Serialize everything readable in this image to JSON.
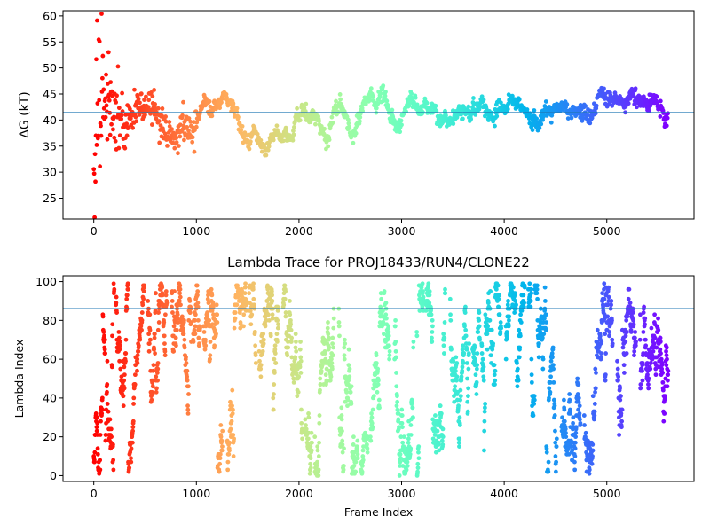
{
  "chart_data": [
    {
      "type": "scatter",
      "title": "",
      "xlabel": "",
      "ylabel": "ΔG (kT)",
      "xlim": [
        -300,
        5850
      ],
      "ylim": [
        21,
        61
      ],
      "xticks": [
        0,
        1000,
        2000,
        3000,
        4000,
        5000
      ],
      "yticks": [
        25,
        30,
        35,
        40,
        45,
        50,
        55,
        60
      ],
      "hline": 41.4,
      "hline_color": "#1f77b4",
      "colormap": "rainbow (reversed: red at frame 0, violet at last frame)",
      "total_frames": 5600,
      "grid": false,
      "segments": [
        {
          "x": 0,
          "y": 41.0
        },
        {
          "x": 60,
          "y": 44.0
        },
        {
          "x": 120,
          "y": 45.0
        },
        {
          "x": 180,
          "y": 42.0
        },
        {
          "x": 240,
          "y": 40.0
        },
        {
          "x": 300,
          "y": 38.0
        },
        {
          "x": 360,
          "y": 41.0
        },
        {
          "x": 420,
          "y": 43.0
        },
        {
          "x": 480,
          "y": 41.0
        },
        {
          "x": 540,
          "y": 44.0
        },
        {
          "x": 600,
          "y": 42.0
        },
        {
          "x": 660,
          "y": 40.0
        },
        {
          "x": 720,
          "y": 37.5
        },
        {
          "x": 780,
          "y": 36.5
        },
        {
          "x": 840,
          "y": 38.0
        },
        {
          "x": 900,
          "y": 39.5
        },
        {
          "x": 960,
          "y": 37.5
        },
        {
          "x": 1020,
          "y": 41.0
        },
        {
          "x": 1080,
          "y": 44.5
        },
        {
          "x": 1140,
          "y": 41.5
        },
        {
          "x": 1200,
          "y": 43.5
        },
        {
          "x": 1260,
          "y": 45.0
        },
        {
          "x": 1320,
          "y": 44.0
        },
        {
          "x": 1380,
          "y": 42.0
        },
        {
          "x": 1440,
          "y": 37.0
        },
        {
          "x": 1500,
          "y": 35.5
        },
        {
          "x": 1560,
          "y": 38.5
        },
        {
          "x": 1620,
          "y": 37.0
        },
        {
          "x": 1680,
          "y": 34.5
        },
        {
          "x": 1740,
          "y": 36.5
        },
        {
          "x": 1800,
          "y": 38.0
        },
        {
          "x": 1860,
          "y": 37.0
        },
        {
          "x": 1920,
          "y": 37.0
        },
        {
          "x": 1980,
          "y": 41.0
        },
        {
          "x": 2040,
          "y": 41.5
        },
        {
          "x": 2100,
          "y": 40.0
        },
        {
          "x": 2160,
          "y": 41.0
        },
        {
          "x": 2220,
          "y": 38.0
        },
        {
          "x": 2280,
          "y": 36.5
        },
        {
          "x": 2340,
          "y": 41.5
        },
        {
          "x": 2400,
          "y": 43.5
        },
        {
          "x": 2460,
          "y": 40.0
        },
        {
          "x": 2520,
          "y": 36.0
        },
        {
          "x": 2580,
          "y": 40.0
        },
        {
          "x": 2640,
          "y": 43.5
        },
        {
          "x": 2700,
          "y": 44.5
        },
        {
          "x": 2760,
          "y": 43.5
        },
        {
          "x": 2820,
          "y": 46.5
        },
        {
          "x": 2880,
          "y": 41.5
        },
        {
          "x": 2940,
          "y": 39.5
        },
        {
          "x": 3000,
          "y": 39.5
        },
        {
          "x": 3060,
          "y": 44.0
        },
        {
          "x": 3120,
          "y": 43.5
        },
        {
          "x": 3180,
          "y": 42.0
        },
        {
          "x": 3240,
          "y": 42.5
        },
        {
          "x": 3300,
          "y": 42.0
        },
        {
          "x": 3360,
          "y": 40.5
        },
        {
          "x": 3420,
          "y": 41.0
        },
        {
          "x": 3480,
          "y": 38.5
        },
        {
          "x": 3540,
          "y": 42.0
        },
        {
          "x": 3600,
          "y": 41.5
        },
        {
          "x": 3660,
          "y": 42.5
        },
        {
          "x": 3720,
          "y": 42.5
        },
        {
          "x": 3780,
          "y": 43.0
        },
        {
          "x": 3840,
          "y": 40.5
        },
        {
          "x": 3900,
          "y": 41.0
        },
        {
          "x": 3960,
          "y": 41.0
        },
        {
          "x": 4020,
          "y": 43.0
        },
        {
          "x": 4080,
          "y": 42.5
        },
        {
          "x": 4140,
          "y": 43.0
        },
        {
          "x": 4200,
          "y": 41.0
        },
        {
          "x": 4260,
          "y": 42.0
        },
        {
          "x": 4320,
          "y": 40.5
        },
        {
          "x": 4380,
          "y": 40.5
        },
        {
          "x": 4440,
          "y": 42.0
        },
        {
          "x": 4500,
          "y": 42.0
        },
        {
          "x": 4560,
          "y": 42.5
        },
        {
          "x": 4620,
          "y": 41.5
        },
        {
          "x": 4680,
          "y": 42.0
        },
        {
          "x": 4740,
          "y": 42.0
        },
        {
          "x": 4800,
          "y": 40.5
        },
        {
          "x": 4860,
          "y": 42.0
        },
        {
          "x": 4920,
          "y": 45.0
        },
        {
          "x": 4980,
          "y": 44.5
        },
        {
          "x": 5040,
          "y": 44.0
        },
        {
          "x": 5100,
          "y": 43.5
        },
        {
          "x": 5160,
          "y": 43.5
        },
        {
          "x": 5220,
          "y": 45.0
        },
        {
          "x": 5280,
          "y": 45.0
        },
        {
          "x": 5340,
          "y": 43.0
        },
        {
          "x": 5400,
          "y": 42.5
        },
        {
          "x": 5460,
          "y": 44.0
        },
        {
          "x": 5520,
          "y": 42.0
        },
        {
          "x": 5580,
          "y": 41.0
        }
      ]
    },
    {
      "type": "scatter",
      "title": "Lambda Trace for PROJ18433/RUN4/CLONE22",
      "xlabel": "Frame Index",
      "ylabel": "Lambda Index",
      "xlim": [
        -300,
        5850
      ],
      "ylim": [
        -3,
        103
      ],
      "xticks": [
        0,
        1000,
        2000,
        3000,
        4000,
        5000
      ],
      "yticks": [
        0,
        20,
        40,
        60,
        80,
        100
      ],
      "hline": 86,
      "hline_color": "#1f77b4",
      "colormap": "rainbow (reversed: red at frame 0, violet at last frame)",
      "total_frames": 5600,
      "value_range": [
        0,
        99
      ],
      "grid": false
    }
  ]
}
